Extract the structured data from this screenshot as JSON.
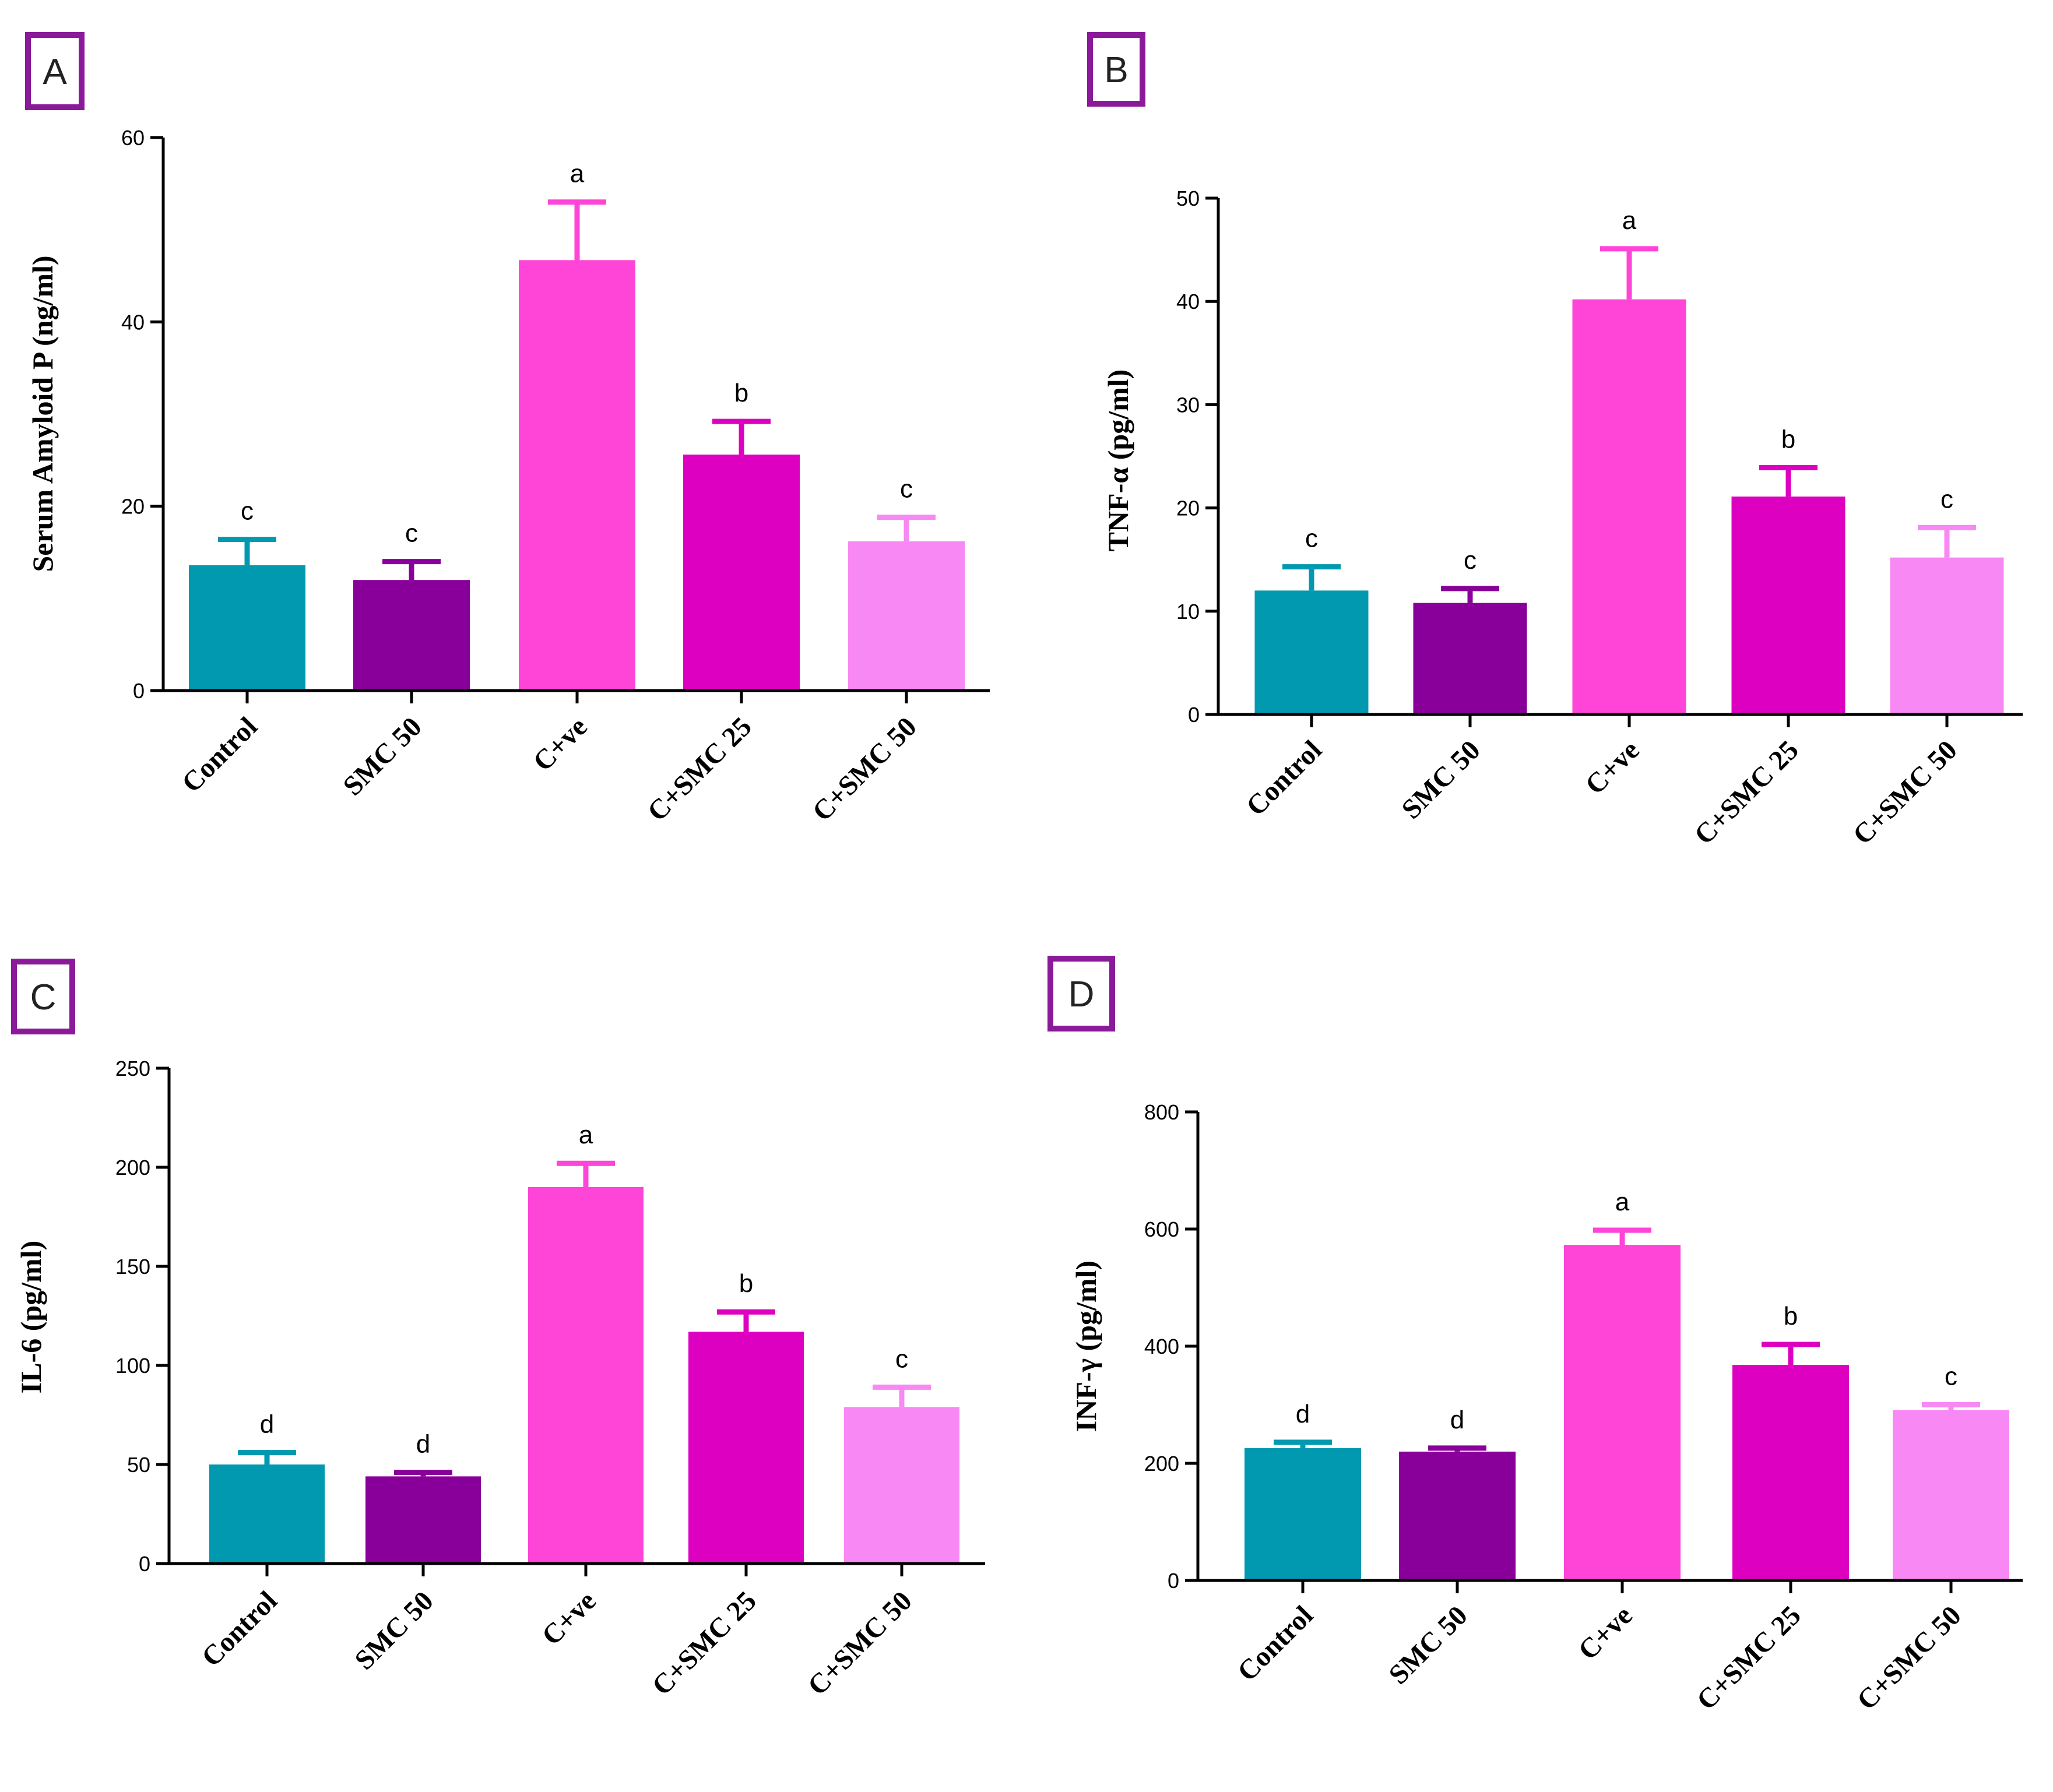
{
  "colors": {
    "axis": "#000000",
    "panel_box": "#8a1a9a",
    "bars": [
      "#0099b0",
      "#880099",
      "#ff44d8",
      "#dd00c0",
      "#f888f4"
    ]
  },
  "chart_data": [
    {
      "panel": "A",
      "type": "bar",
      "categories": [
        "Control",
        "SMC 50",
        "C+ve",
        "C+SMC 25",
        "C+SMC 50"
      ],
      "values": [
        13.6,
        12.0,
        46.7,
        25.6,
        16.2
      ],
      "errors": [
        2.8,
        2.0,
        6.3,
        3.6,
        2.6
      ],
      "significance": [
        "c",
        "c",
        "a",
        "b",
        "c"
      ],
      "ylabel": "Serum Amyloid P (ng/ml)",
      "ylim": [
        0,
        60
      ],
      "yticks": [
        "0",
        "20",
        "40",
        "60"
      ]
    },
    {
      "panel": "B",
      "type": "bar",
      "categories": [
        "Control",
        "SMC 50",
        "C+ve",
        "C+SMC 25",
        "C+SMC 50"
      ],
      "values": [
        12.0,
        10.8,
        40.2,
        21.1,
        15.2
      ],
      "errors": [
        2.3,
        1.4,
        4.9,
        2.8,
        2.9
      ],
      "significance": [
        "c",
        "c",
        "a",
        "b",
        "c"
      ],
      "ylabel": "TNF-α (pg/ml)",
      "ylim": [
        0,
        50
      ],
      "yticks": [
        "0",
        "10",
        "20",
        "30",
        "40",
        "50"
      ]
    },
    {
      "panel": "C",
      "type": "bar",
      "categories": [
        "Control",
        "SMC 50",
        "C+ve",
        "C+SMC 25",
        "C+SMC 50"
      ],
      "values": [
        50,
        44,
        190,
        117,
        79
      ],
      "errors": [
        6,
        2,
        12,
        10,
        10
      ],
      "significance": [
        "d",
        "d",
        "a",
        "b",
        "c"
      ],
      "ylabel": "IL-6 (pg/ml)",
      "ylim": [
        0,
        250
      ],
      "yticks": [
        "0",
        "50",
        "100",
        "150",
        "200",
        "250"
      ]
    },
    {
      "panel": "D",
      "type": "bar",
      "categories": [
        "Control",
        "SMC 50",
        "C+ve",
        "C+SMC 25",
        "C+SMC 50"
      ],
      "values": [
        226,
        220,
        573,
        368,
        291
      ],
      "errors": [
        10,
        6,
        25,
        35,
        9
      ],
      "significance": [
        "d",
        "d",
        "a",
        "b",
        "c"
      ],
      "ylabel": "INF-γ (pg/ml)",
      "ylim": [
        0,
        800
      ],
      "yticks": [
        "0",
        "200",
        "400",
        "600",
        "800"
      ]
    }
  ]
}
